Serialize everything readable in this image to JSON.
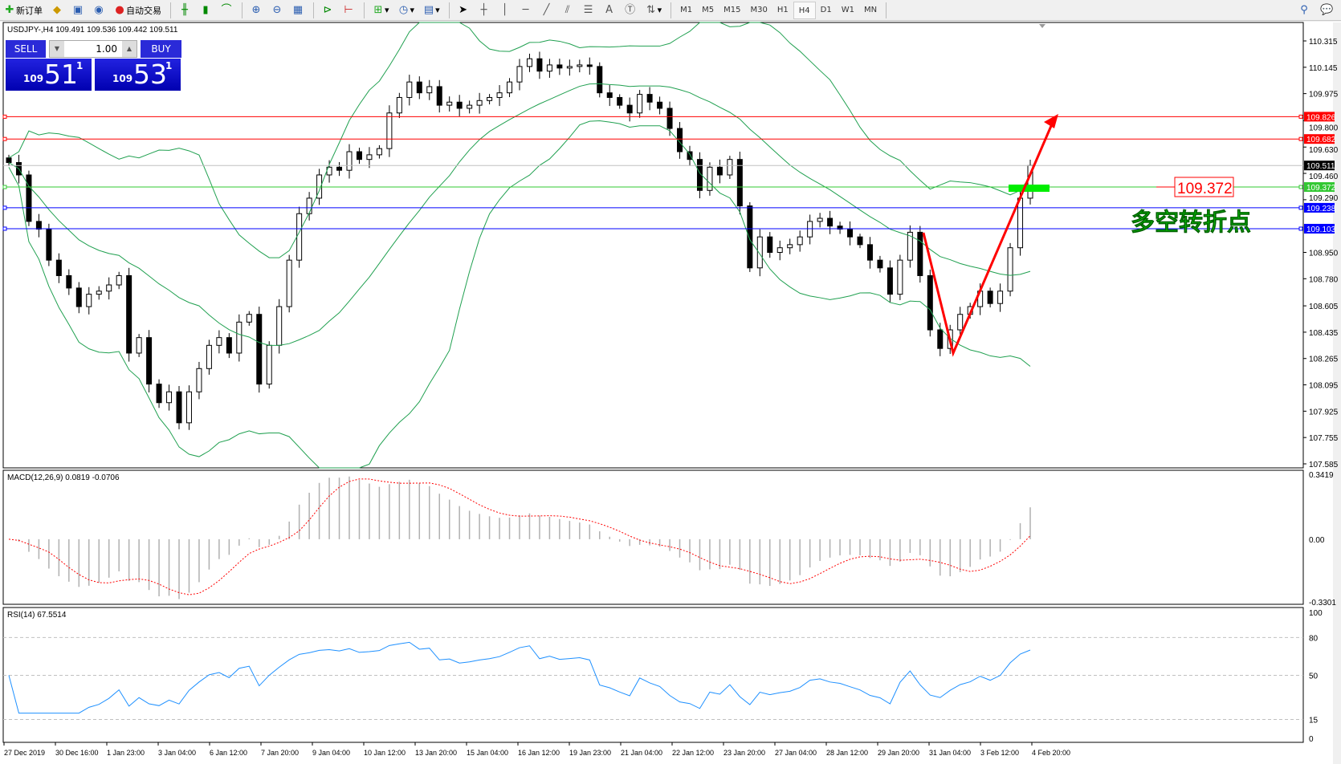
{
  "toolbar": {
    "new_order": "新订单",
    "auto_trading": "自动交易",
    "timeframes": [
      "M1",
      "M5",
      "M15",
      "M30",
      "H1",
      "H4",
      "D1",
      "W1",
      "MN"
    ],
    "active_timeframe": "H4"
  },
  "chart": {
    "header": "USDJPY-,H4  109.491 109.536 109.442 109.511",
    "trade_panel": {
      "sell": "SELL",
      "buy": "BUY",
      "lot": "1.00",
      "sell_small": "109",
      "sell_big": "51",
      "sell_pip": "1",
      "buy_small": "109",
      "buy_big": "53",
      "buy_pip": "1"
    },
    "price_axis": [
      "110.315",
      "110.145",
      "109.975",
      "109.800",
      "109.630",
      "109.460",
      "109.290",
      "108.950",
      "108.780",
      "108.605",
      "108.435",
      "108.265",
      "108.095",
      "107.925",
      "107.755",
      "107.585"
    ],
    "price_range": [
      107.585,
      110.315
    ],
    "hlines": [
      {
        "price": 109.826,
        "label": "109.826",
        "color": "#ff0000"
      },
      {
        "price": 109.682,
        "label": "109.682",
        "color": "#ff0000"
      },
      {
        "price": 109.511,
        "label": "109.511",
        "color": "#000000",
        "line": "#c0c0c0"
      },
      {
        "price": 109.372,
        "label": "109.372",
        "color": "#32c832"
      },
      {
        "price": 109.238,
        "label": "109.238",
        "color": "#0000ff"
      },
      {
        "price": 109.103,
        "label": "109.103",
        "color": "#0000ff"
      }
    ],
    "annotation_price": "109.372",
    "annotation_text": "多空转折点",
    "closes": [
      109.53,
      109.45,
      109.15,
      109.1,
      108.9,
      108.8,
      108.72,
      108.6,
      108.68,
      108.7,
      108.74,
      108.8,
      108.3,
      108.4,
      108.1,
      107.98,
      108.05,
      107.85,
      108.05,
      108.2,
      108.35,
      108.4,
      108.3,
      108.5,
      108.55,
      108.1,
      108.35,
      108.6,
      108.9,
      109.2,
      109.3,
      109.45,
      109.5,
      109.48,
      109.6,
      109.55,
      109.58,
      109.62,
      109.85,
      109.95,
      110.05,
      109.98,
      110.02,
      109.9,
      109.92,
      109.88,
      109.9,
      109.93,
      109.95,
      109.98,
      110.05,
      110.15,
      110.2,
      110.12,
      110.16,
      110.14,
      110.15,
      110.16,
      110.15,
      109.98,
      109.95,
      109.9,
      109.85,
      109.97,
      109.92,
      109.88,
      109.75,
      109.6,
      109.55,
      109.35,
      109.5,
      109.45,
      109.55,
      109.25,
      108.85,
      109.05,
      108.95,
      108.98,
      109.0,
      109.05,
      109.15,
      109.17,
      109.12,
      109.1,
      109.05,
      109.0,
      108.9,
      108.85,
      108.68,
      108.9,
      109.08,
      108.8,
      108.45,
      108.33,
      108.45,
      108.55,
      108.6,
      108.7,
      108.62,
      108.7,
      108.98,
      109.3,
      109.511
    ],
    "macd": {
      "label": "MACD(12,26,9) 0.0819 -0.0706",
      "axis": [
        "0.3419",
        "0.00",
        "-0.3301"
      ],
      "range": [
        -0.3301,
        0.3419
      ]
    },
    "rsi": {
      "label": "RSI(14) 67.5514",
      "axis": [
        "100",
        "80",
        "50",
        "15",
        "0"
      ],
      "levels": [
        80,
        50,
        15
      ]
    },
    "dates": [
      "27 Dec 2019",
      "30 Dec 16:00",
      "1 Jan 23:00",
      "3 Jan 04:00",
      "6 Jan 12:00",
      "7 Jan 20:00",
      "9 Jan 04:00",
      "10 Jan 12:00",
      "13 Jan 20:00",
      "15 Jan 04:00",
      "16 Jan 12:00",
      "19 Jan 23:00",
      "21 Jan 04:00",
      "22 Jan 12:00",
      "23 Jan 20:00",
      "27 Jan 04:00",
      "28 Jan 12:00",
      "29 Jan 20:00",
      "31 Jan 04:00",
      "3 Feb 12:00",
      "4 Feb 20:00"
    ],
    "colors": {
      "bull": "#ffffff",
      "bear": "#000000",
      "bands": "#20a050",
      "macd_signal": "#ff0000",
      "rsi": "#1e90ff",
      "arrow": "#ff0000",
      "zone": "#00ee00"
    }
  }
}
